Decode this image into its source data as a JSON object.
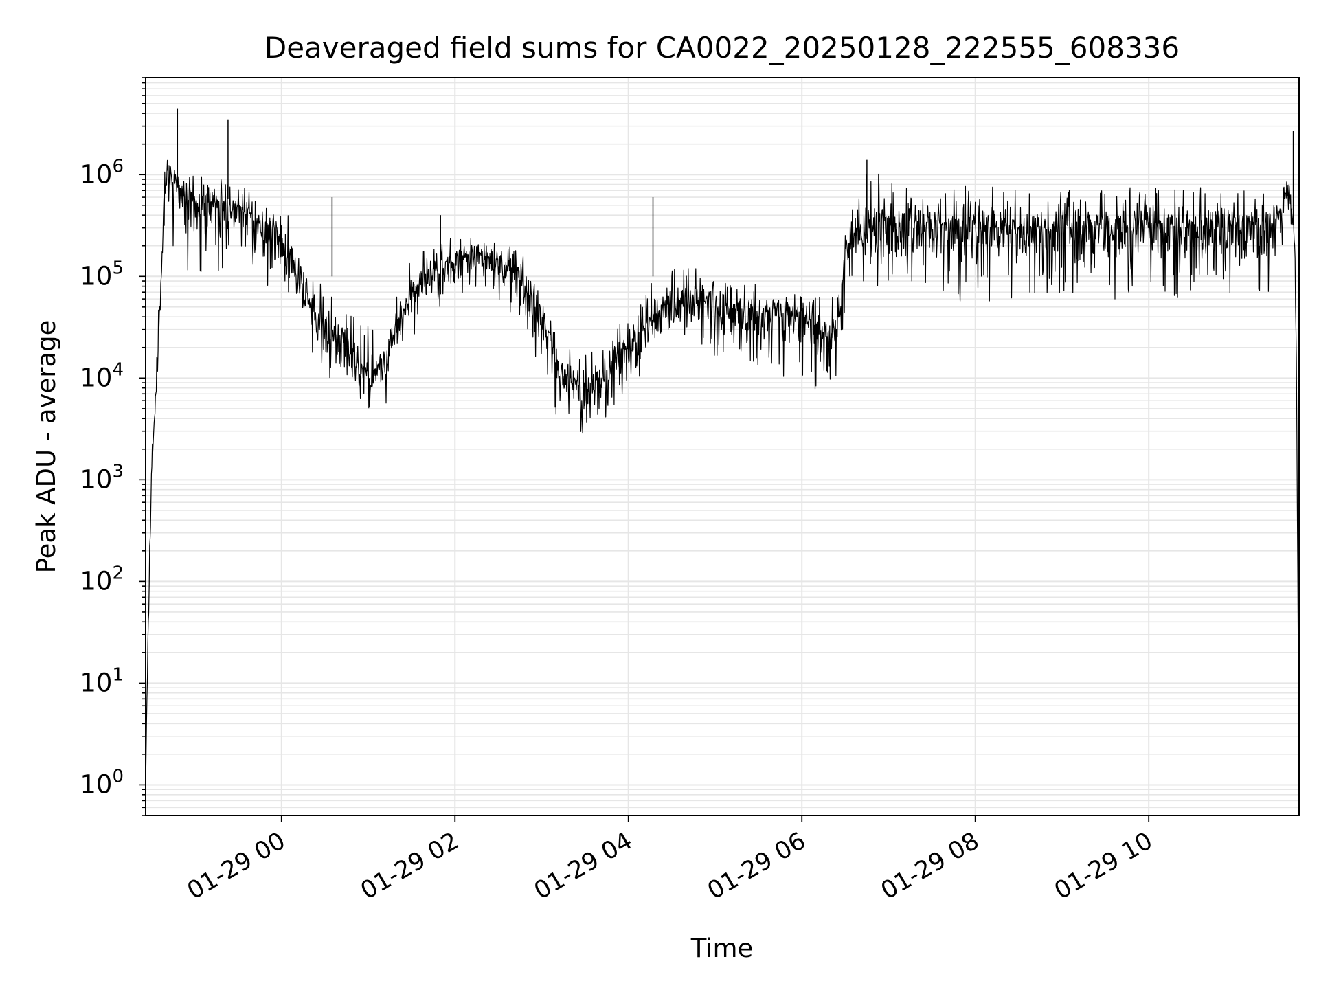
{
  "chart_data": {
    "type": "line",
    "title": "Deaveraged field sums for CA0022_20250128_222555_608336",
    "xlabel": "Time",
    "ylabel": "Peak ADU - average",
    "yscale": "log",
    "ylim": [
      0.5,
      9000000
    ],
    "xlim": [
      "2025-01-28 22:26",
      "2025-01-29 11:44"
    ],
    "grid": true,
    "legend": "none",
    "line_color": "#000000",
    "grid_color": "#e6e6e6",
    "x_ticks": [
      {
        "label": "01-29 00",
        "time": "2025-01-29 00:00"
      },
      {
        "label": "01-29 02",
        "time": "2025-01-29 02:00"
      },
      {
        "label": "01-29 04",
        "time": "2025-01-29 04:00"
      },
      {
        "label": "01-29 06",
        "time": "2025-01-29 06:00"
      },
      {
        "label": "01-29 08",
        "time": "2025-01-29 08:00"
      },
      {
        "label": "01-29 10",
        "time": "2025-01-29 10:00"
      }
    ],
    "y_ticks": [
      {
        "base": "10",
        "exp": "0",
        "value": 1
      },
      {
        "base": "10",
        "exp": "1",
        "value": 10
      },
      {
        "base": "10",
        "exp": "2",
        "value": 100
      },
      {
        "base": "10",
        "exp": "3",
        "value": 1000
      },
      {
        "base": "10",
        "exp": "4",
        "value": 10000
      },
      {
        "base": "10",
        "exp": "5",
        "value": 100000
      },
      {
        "base": "10",
        "exp": "6",
        "value": 1000000
      }
    ],
    "series": [
      {
        "style": "noisy-envelope",
        "x": [
          "2025-01-28 22:26",
          "2025-01-28 22:28",
          "2025-01-28 22:30",
          "2025-01-28 22:33",
          "2025-01-28 22:36",
          "2025-01-28 22:39",
          "2025-01-28 22:42",
          "2025-01-28 22:45",
          "2025-01-28 22:48",
          "2025-01-28 22:52",
          "2025-01-28 23:00",
          "2025-01-28 23:10",
          "2025-01-28 23:20",
          "2025-01-28 23:30",
          "2025-01-28 23:40",
          "2025-01-28 23:50",
          "2025-01-29 00:00",
          "2025-01-29 00:10",
          "2025-01-29 00:20",
          "2025-01-29 00:30",
          "2025-01-29 00:45",
          "2025-01-29 01:00",
          "2025-01-29 01:10",
          "2025-01-29 01:20",
          "2025-01-29 01:30",
          "2025-01-29 01:45",
          "2025-01-29 02:00",
          "2025-01-29 02:15",
          "2025-01-29 02:30",
          "2025-01-29 02:45",
          "2025-01-29 03:00",
          "2025-01-29 03:10",
          "2025-01-29 03:20",
          "2025-01-29 03:30",
          "2025-01-29 03:45",
          "2025-01-29 04:00",
          "2025-01-29 04:15",
          "2025-01-29 04:30",
          "2025-01-29 04:45",
          "2025-01-29 05:00",
          "2025-01-29 05:15",
          "2025-01-29 05:30",
          "2025-01-29 05:45",
          "2025-01-29 06:00",
          "2025-01-29 06:15",
          "2025-01-29 06:25",
          "2025-01-29 06:30",
          "2025-01-29 06:35",
          "2025-01-29 06:45",
          "2025-01-29 07:00",
          "2025-01-29 07:30",
          "2025-01-29 08:00",
          "2025-01-29 08:30",
          "2025-01-29 09:00",
          "2025-01-29 09:30",
          "2025-01-29 10:00",
          "2025-01-29 10:30",
          "2025-01-29 11:00",
          "2025-01-29 11:30",
          "2025-01-29 11:36",
          "2025-01-29 11:40",
          "2025-01-29 11:42",
          "2025-01-29 11:44"
        ],
        "y": [
          1,
          60,
          1000,
          8000,
          60000,
          700000,
          1100000,
          1000000,
          800000,
          600000,
          550000,
          500000,
          470000,
          450000,
          350000,
          300000,
          250000,
          110000,
          50000,
          30000,
          20000,
          10000,
          12000,
          30000,
          70000,
          100000,
          140000,
          160000,
          140000,
          90000,
          40000,
          15000,
          8000,
          7000,
          10000,
          20000,
          35000,
          55000,
          60000,
          50000,
          45000,
          40000,
          45000,
          40000,
          25000,
          35000,
          150000,
          250000,
          300000,
          330000,
          320000,
          300000,
          280000,
          290000,
          290000,
          300000,
          300000,
          310000,
          330000,
          700000,
          450000,
          30000,
          1
        ],
        "y_low": [
          1,
          30,
          600,
          5000,
          30000,
          150000,
          250000,
          200000,
          150000,
          100000,
          100000,
          100000,
          90000,
          80000,
          80000,
          80000,
          70000,
          30000,
          15000,
          10000,
          6000,
          4000,
          4500,
          10000,
          25000,
          40000,
          60000,
          70000,
          60000,
          30000,
          10000,
          4000,
          3000,
          2500,
          4000,
          7000,
          12000,
          15000,
          20000,
          15000,
          14000,
          12000,
          10000,
          9000,
          7000,
          10000,
          50000,
          90000,
          70000,
          60000,
          60000,
          55000,
          55000,
          60000,
          60000,
          60000,
          60000,
          60000,
          60000,
          200000,
          150000,
          10000,
          1
        ],
        "y_high": [
          1,
          100,
          1500,
          12000,
          120000,
          1300000,
          1600000,
          1300000,
          1100000,
          1000000,
          1000000,
          950000,
          900000,
          850000,
          650000,
          600000,
          550000,
          300000,
          120000,
          80000,
          50000,
          35000,
          30000,
          80000,
          150000,
          200000,
          250000,
          300000,
          250000,
          200000,
          100000,
          40000,
          25000,
          20000,
          30000,
          50000,
          90000,
          120000,
          130000,
          110000,
          100000,
          90000,
          100000,
          90000,
          60000,
          70000,
          300000,
          600000,
          1200000,
          900000,
          800000,
          800000,
          750000,
          750000,
          750000,
          750000,
          750000,
          750000,
          750000,
          1000000,
          800000,
          60000,
          1
        ]
      }
    ],
    "spikes": [
      {
        "x": "2025-01-28 22:48",
        "y": 4500000
      },
      {
        "x": "2025-01-28 23:23",
        "y": 3500000
      },
      {
        "x": "2025-01-29 00:35",
        "y": 600000
      },
      {
        "x": "2025-01-29 01:50",
        "y": 400000
      },
      {
        "x": "2025-01-29 04:17",
        "y": 600000
      },
      {
        "x": "2025-01-29 06:45",
        "y": 1400000
      },
      {
        "x": "2025-01-29 11:40",
        "y": 2700000
      }
    ]
  }
}
